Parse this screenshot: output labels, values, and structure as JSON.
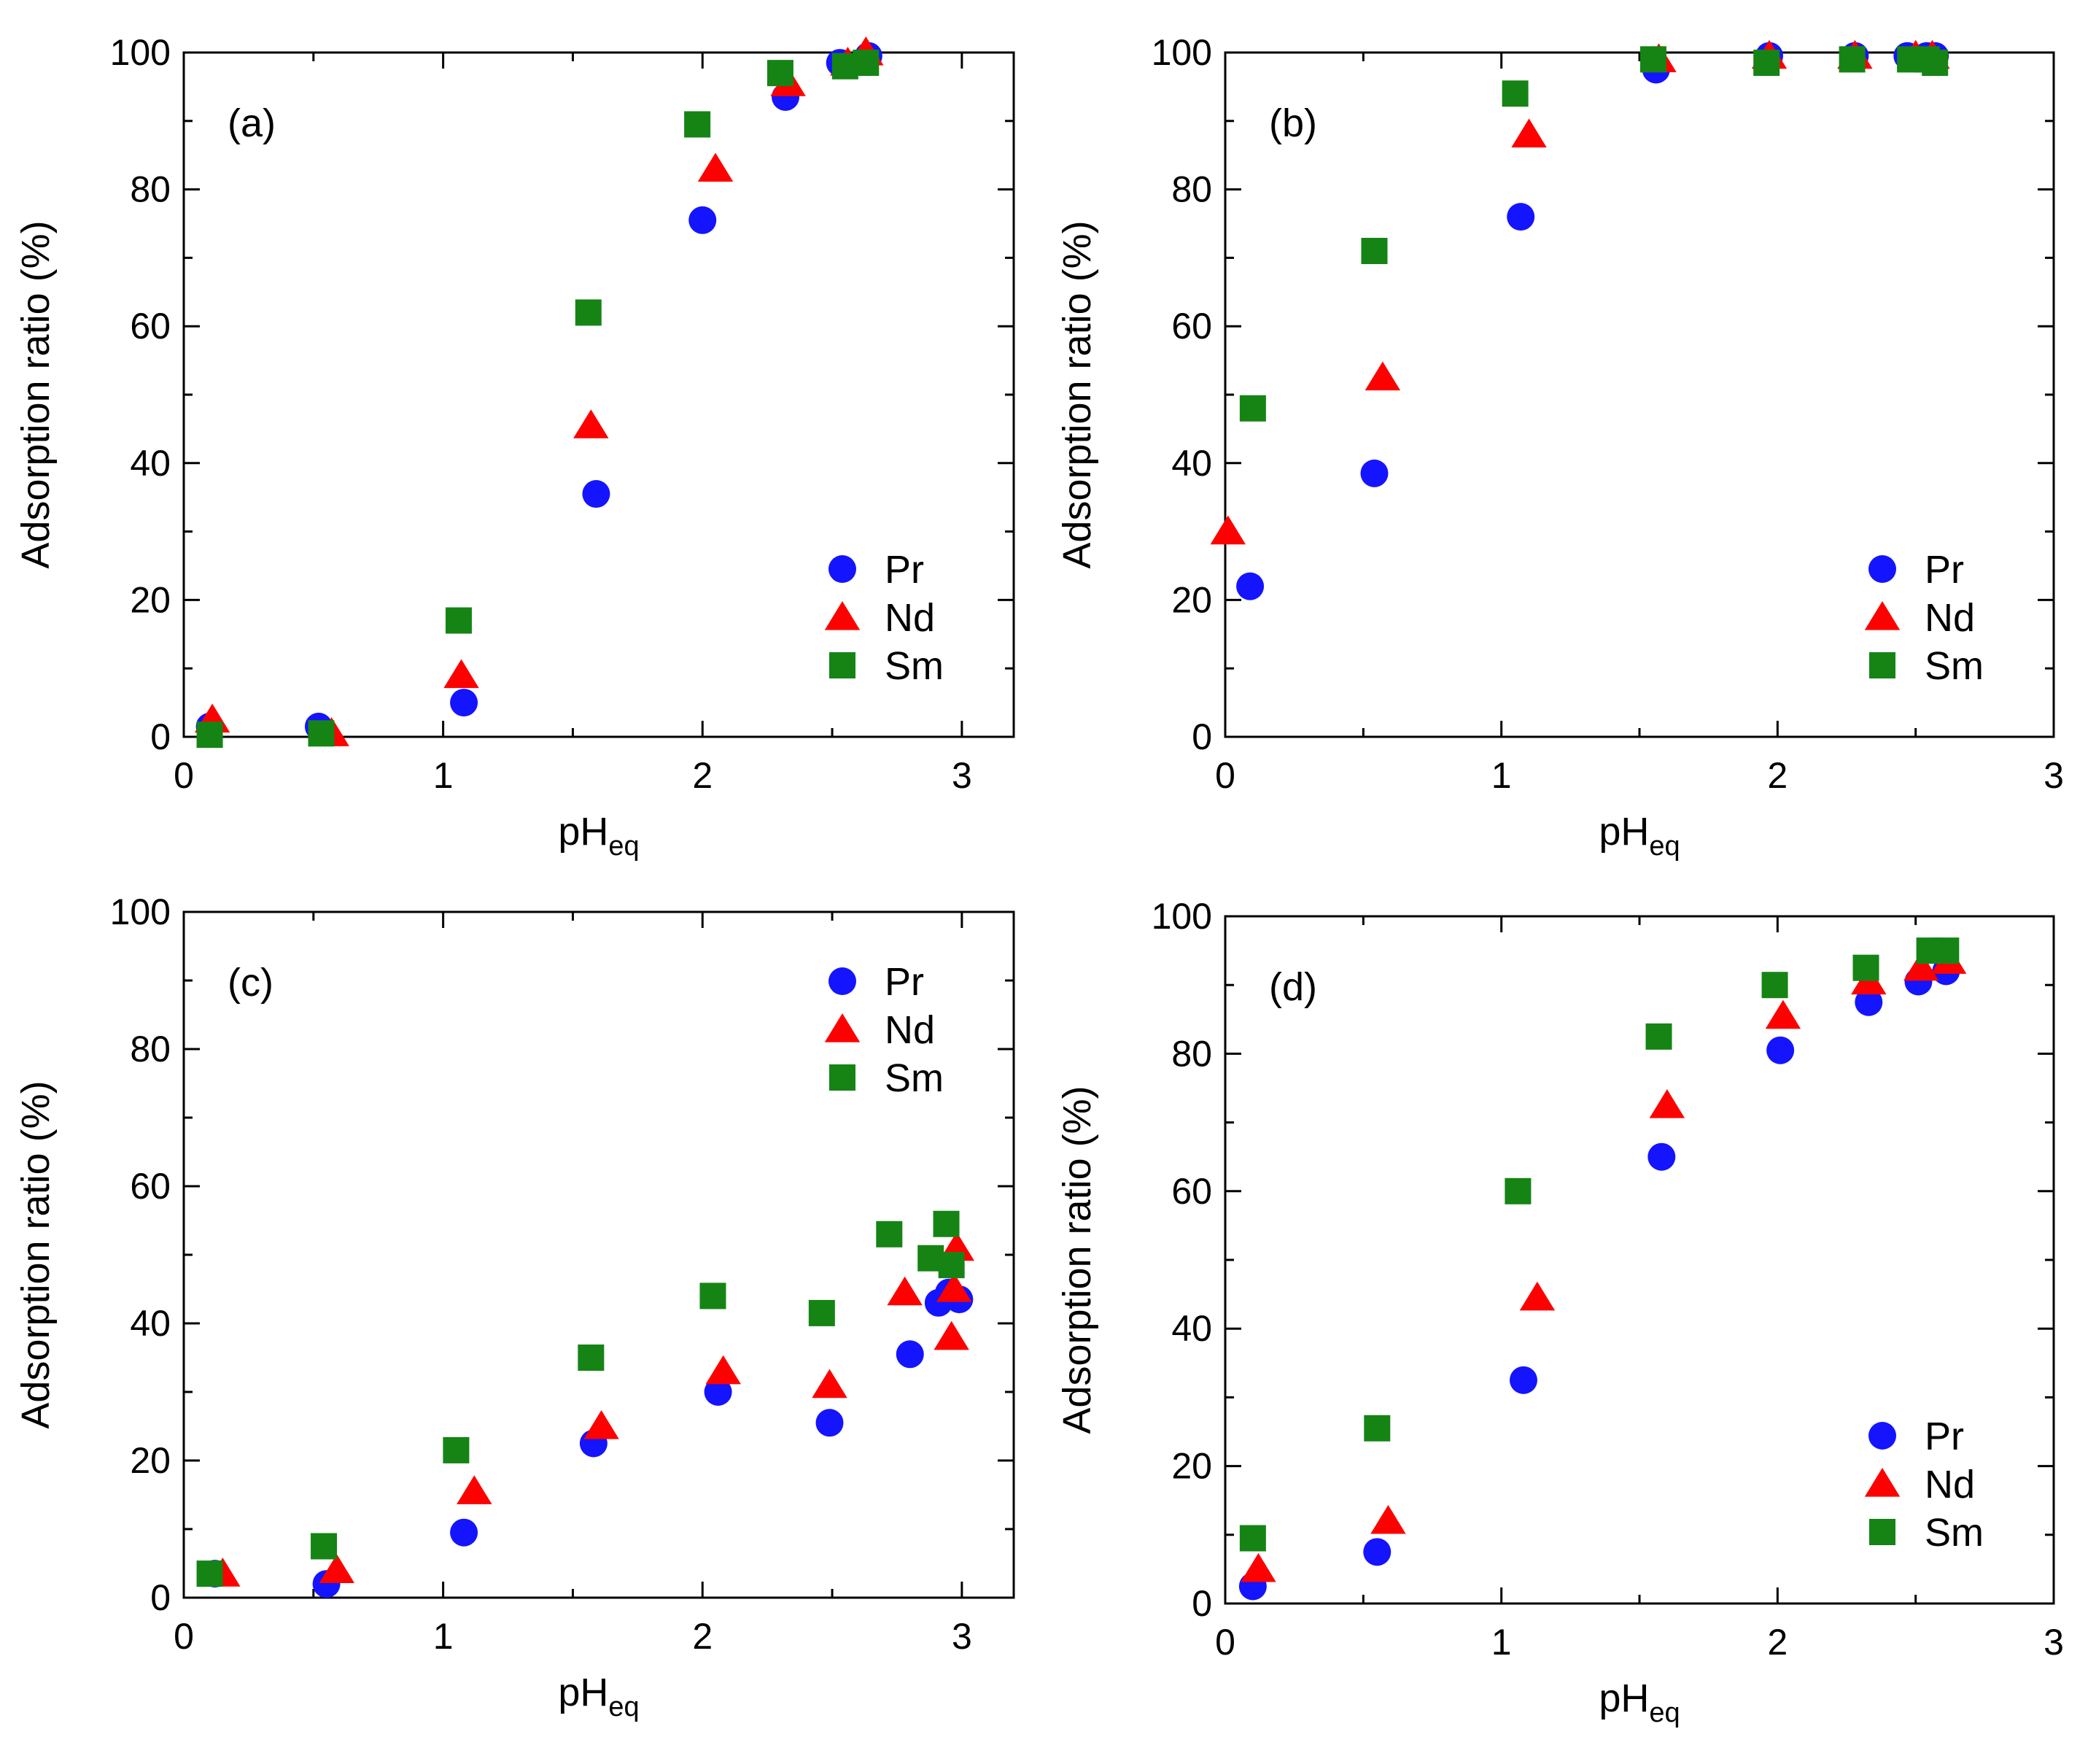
{
  "figure": {
    "colors": {
      "Pr": "#1414ff",
      "Nd": "#ff0000",
      "Sm": "#158415",
      "axis": "#000000"
    }
  },
  "chart_data": [
    {
      "panel": "(a)",
      "type": "scatter",
      "xlabel": "pH",
      "xlabel_sub": "eq",
      "ylabel": "Adsorption ratio (%)",
      "xlim": [
        0,
        3.2
      ],
      "ylim": [
        0,
        100
      ],
      "xticks": [
        "0",
        "1",
        "2",
        "3"
      ],
      "yticks": [
        "0",
        "20",
        "40",
        "60",
        "80",
        "100"
      ],
      "legend_position": "bottom-right",
      "series": [
        {
          "name": "Pr",
          "marker": "circle",
          "x": [
            0.1,
            0.52,
            1.08,
            1.59,
            2.0,
            2.32,
            2.53,
            2.64
          ],
          "y": [
            1.5,
            1.5,
            5,
            35.5,
            75.5,
            93.5,
            98.5,
            99.5
          ]
        },
        {
          "name": "Nd",
          "marker": "triangle",
          "x": [
            0.11,
            0.57,
            1.07,
            1.57,
            2.05,
            2.33,
            2.56,
            2.63
          ],
          "y": [
            2.5,
            0.5,
            9,
            45.5,
            83,
            95.5,
            98.5,
            100
          ]
        },
        {
          "name": "Sm",
          "marker": "square",
          "x": [
            0.1,
            0.53,
            1.06,
            1.56,
            1.98,
            2.3,
            2.55,
            2.63
          ],
          "y": [
            0.3,
            0.5,
            17,
            62,
            89.5,
            97,
            98,
            98.5
          ]
        }
      ]
    },
    {
      "panel": "(b)",
      "type": "scatter",
      "xlabel": "pH",
      "xlabel_sub": "eq",
      "ylabel": "Adsorption ratio (%)",
      "xlim": [
        0,
        3
      ],
      "ylim": [
        0,
        100
      ],
      "xticks": [
        "0",
        "1",
        "2",
        "3"
      ],
      "yticks": [
        "0",
        "20",
        "40",
        "60",
        "80",
        "100"
      ],
      "legend_position": "bottom-right",
      "series": [
        {
          "name": "Pr",
          "marker": "circle",
          "x": [
            0.09,
            0.54,
            1.07,
            1.56,
            1.97,
            2.28,
            2.47,
            2.54,
            2.57
          ],
          "y": [
            22,
            38.5,
            76,
            97.5,
            99.5,
            99.5,
            99.5,
            99.5,
            99.5
          ]
        },
        {
          "name": "Nd",
          "marker": "triangle",
          "x": [
            0.01,
            0.57,
            1.1,
            1.57,
            1.97,
            2.28,
            2.5,
            2.56
          ],
          "y": [
            30,
            52.5,
            88,
            99,
            99.5,
            99.5,
            99.5,
            99.5
          ]
        },
        {
          "name": "Sm",
          "marker": "square",
          "x": [
            0.1,
            0.54,
            1.05,
            1.55,
            1.96,
            2.27,
            2.48,
            2.54,
            2.57
          ],
          "y": [
            48,
            71,
            94,
            99,
            98.5,
            99,
            99,
            99,
            98.5
          ]
        }
      ]
    },
    {
      "panel": "(c)",
      "type": "scatter",
      "xlabel": "pH",
      "xlabel_sub": "eq",
      "ylabel": "Adsorption ratio (%)",
      "xlim": [
        0,
        3.2
      ],
      "ylim": [
        0,
        100
      ],
      "xticks": [
        "0",
        "1",
        "2",
        "3"
      ],
      "yticks": [
        "0",
        "20",
        "40",
        "60",
        "80",
        "100"
      ],
      "legend_position": "top-right",
      "series": [
        {
          "name": "Pr",
          "marker": "circle",
          "x": [
            0.12,
            0.55,
            1.08,
            1.58,
            2.06,
            2.49,
            2.8,
            2.91,
            2.95,
            2.99
          ],
          "y": [
            3.5,
            2,
            9.5,
            22.5,
            30,
            25.5,
            35.5,
            43,
            44.5,
            43.5
          ]
        },
        {
          "name": "Nd",
          "marker": "triangle",
          "x": [
            0.15,
            0.59,
            1.12,
            1.61,
            2.08,
            2.49,
            2.78,
            2.96,
            2.97,
            2.98
          ],
          "y": [
            3.5,
            4,
            15.5,
            25,
            33,
            31,
            44.5,
            38,
            45,
            51
          ]
        },
        {
          "name": "Sm",
          "marker": "square",
          "x": [
            0.1,
            0.54,
            1.05,
            1.57,
            2.04,
            2.46,
            2.72,
            2.88,
            2.94,
            2.96
          ],
          "y": [
            3.5,
            7.5,
            21.5,
            35,
            44,
            41.5,
            53,
            49.5,
            54.5,
            48.5
          ]
        }
      ]
    },
    {
      "panel": "(d)",
      "type": "scatter",
      "xlabel": "pH",
      "xlabel_sub": "eq",
      "ylabel": "Adsorption ratio (%)",
      "xlim": [
        0,
        3
      ],
      "ylim": [
        0,
        100
      ],
      "xticks": [
        "0",
        "1",
        "2",
        "3"
      ],
      "yticks": [
        "0",
        "20",
        "40",
        "60",
        "80",
        "100"
      ],
      "legend_position": "bottom-right",
      "series": [
        {
          "name": "Pr",
          "marker": "circle",
          "x": [
            0.1,
            0.55,
            1.08,
            1.58,
            2.01,
            2.33,
            2.51,
            2.61
          ],
          "y": [
            2.5,
            7.5,
            32.5,
            65,
            80.5,
            87.5,
            90.5,
            92
          ]
        },
        {
          "name": "Nd",
          "marker": "triangle",
          "x": [
            0.12,
            0.59,
            1.13,
            1.6,
            2.02,
            2.33,
            2.52,
            2.62
          ],
          "y": [
            5,
            12,
            44.5,
            72.5,
            85.5,
            90.5,
            92.5,
            93.5
          ]
        },
        {
          "name": "Sm",
          "marker": "square",
          "x": [
            0.1,
            0.55,
            1.06,
            1.57,
            1.99,
            2.32,
            2.55,
            2.61
          ],
          "y": [
            9.5,
            25.5,
            60,
            82.5,
            90,
            92.5,
            95,
            95
          ]
        }
      ]
    }
  ]
}
